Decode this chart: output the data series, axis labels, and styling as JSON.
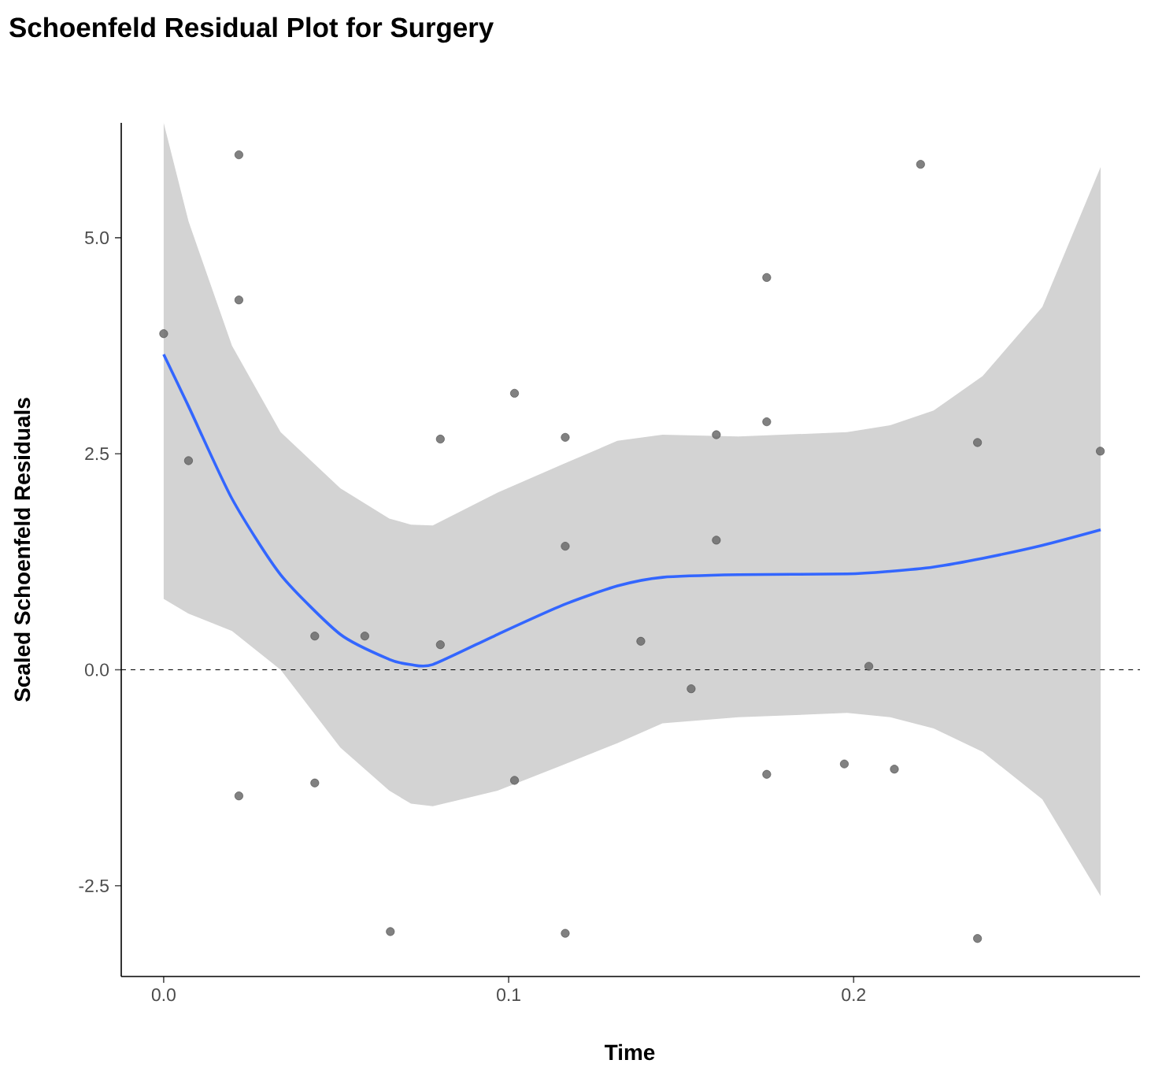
{
  "chart_data": {
    "type": "scatter",
    "title": "Schoenfeld Residual Plot for Surgery",
    "xlabel": "Time",
    "ylabel": "Scaled Schoenfeld Residuals",
    "xlim": [
      -0.0123,
      0.283
    ],
    "ylim": [
      -3.55,
      6.33
    ],
    "xticks": [
      {
        "value": 0,
        "label": "0.0"
      },
      0.1,
      0.2
    ],
    "yticks": [
      -2.5,
      {
        "value": 0,
        "label": "0.0"
      },
      2.5,
      {
        "value": 5,
        "label": "5.0"
      }
    ],
    "grid": false,
    "ref_lines": [
      {
        "axis": "y",
        "value": 0,
        "line_style": "dashed",
        "color": "#000000"
      }
    ],
    "series": [
      {
        "marker": "circle",
        "color": "#6b6b6b",
        "x": [
          0,
          0.0072,
          0.0218,
          0.0218,
          0.0218,
          0.0438,
          0.0438,
          0.0583,
          0.0657,
          0.0802,
          0.0802,
          0.1017,
          0.1017,
          0.1164,
          0.1164,
          0.1164,
          0.1383,
          0.1529,
          0.1602,
          0.1602,
          0.1748,
          0.1748,
          0.1748,
          0.1973,
          0.2044,
          0.2118,
          0.2194,
          0.2359,
          0.2359,
          0.2715
        ],
        "values": [
          3.89,
          2.42,
          5.96,
          4.28,
          -1.46,
          0.39,
          -1.31,
          0.39,
          -3.03,
          2.67,
          0.29,
          3.2,
          -1.28,
          2.69,
          1.43,
          -3.05,
          0.33,
          -0.22,
          2.72,
          1.5,
          4.54,
          2.87,
          -1.21,
          -1.09,
          0.04,
          -1.15,
          5.85,
          2.63,
          -3.11,
          2.53
        ]
      },
      {
        "type": "line",
        "color": "#3366ff",
        "line_style": "solid",
        "x": [
          0,
          0.0072,
          0.0198,
          0.0339,
          0.0512,
          0.0654,
          0.0717,
          0.078,
          0.0968,
          0.1158,
          0.1315,
          0.1446,
          0.1666,
          0.1981,
          0.2106,
          0.2232,
          0.2374,
          0.2547,
          0.2716
        ],
        "values": [
          3.65,
          3.05,
          1.98,
          1.1,
          0.41,
          0.12,
          0.06,
          0.06,
          0.41,
          0.75,
          0.97,
          1.07,
          1.1,
          1.11,
          1.14,
          1.19,
          1.29,
          1.44,
          1.62
        ],
        "upper": [
          6.33,
          5.19,
          3.75,
          2.75,
          2.1,
          1.75,
          1.68,
          1.67,
          2.05,
          2.38,
          2.65,
          2.72,
          2.7,
          2.75,
          2.83,
          3.0,
          3.4,
          4.2,
          5.82
        ],
        "lower": [
          0.82,
          0.65,
          0.45,
          0.0,
          -0.9,
          -1.4,
          -1.55,
          -1.58,
          -1.4,
          -1.1,
          -0.85,
          -0.62,
          -0.55,
          -0.5,
          -0.55,
          -0.68,
          -0.95,
          -1.5,
          -2.62
        ]
      }
    ]
  }
}
